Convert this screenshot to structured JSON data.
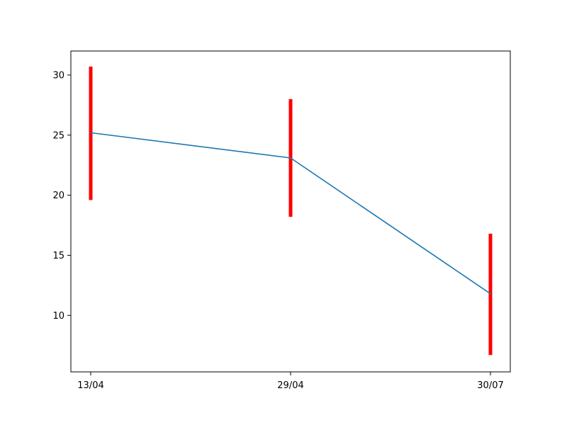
{
  "chart_data": {
    "type": "line",
    "title": "",
    "xlabel": "",
    "ylabel": "",
    "categories": [
      "13/04",
      "29/04",
      "30/07"
    ],
    "series": [
      {
        "values": [
          25.2,
          23.1,
          11.8
        ],
        "error_low": [
          19.6,
          18.2,
          6.7
        ],
        "error_high": [
          30.7,
          28.0,
          16.8
        ]
      }
    ],
    "yticks": [
      10,
      15,
      20,
      25,
      30
    ],
    "ylim": [
      5.3,
      32.0
    ],
    "grid": false,
    "colors": {
      "line": "#1f77b4",
      "error_bars": "#ff0000",
      "axes": "#000000"
    }
  }
}
